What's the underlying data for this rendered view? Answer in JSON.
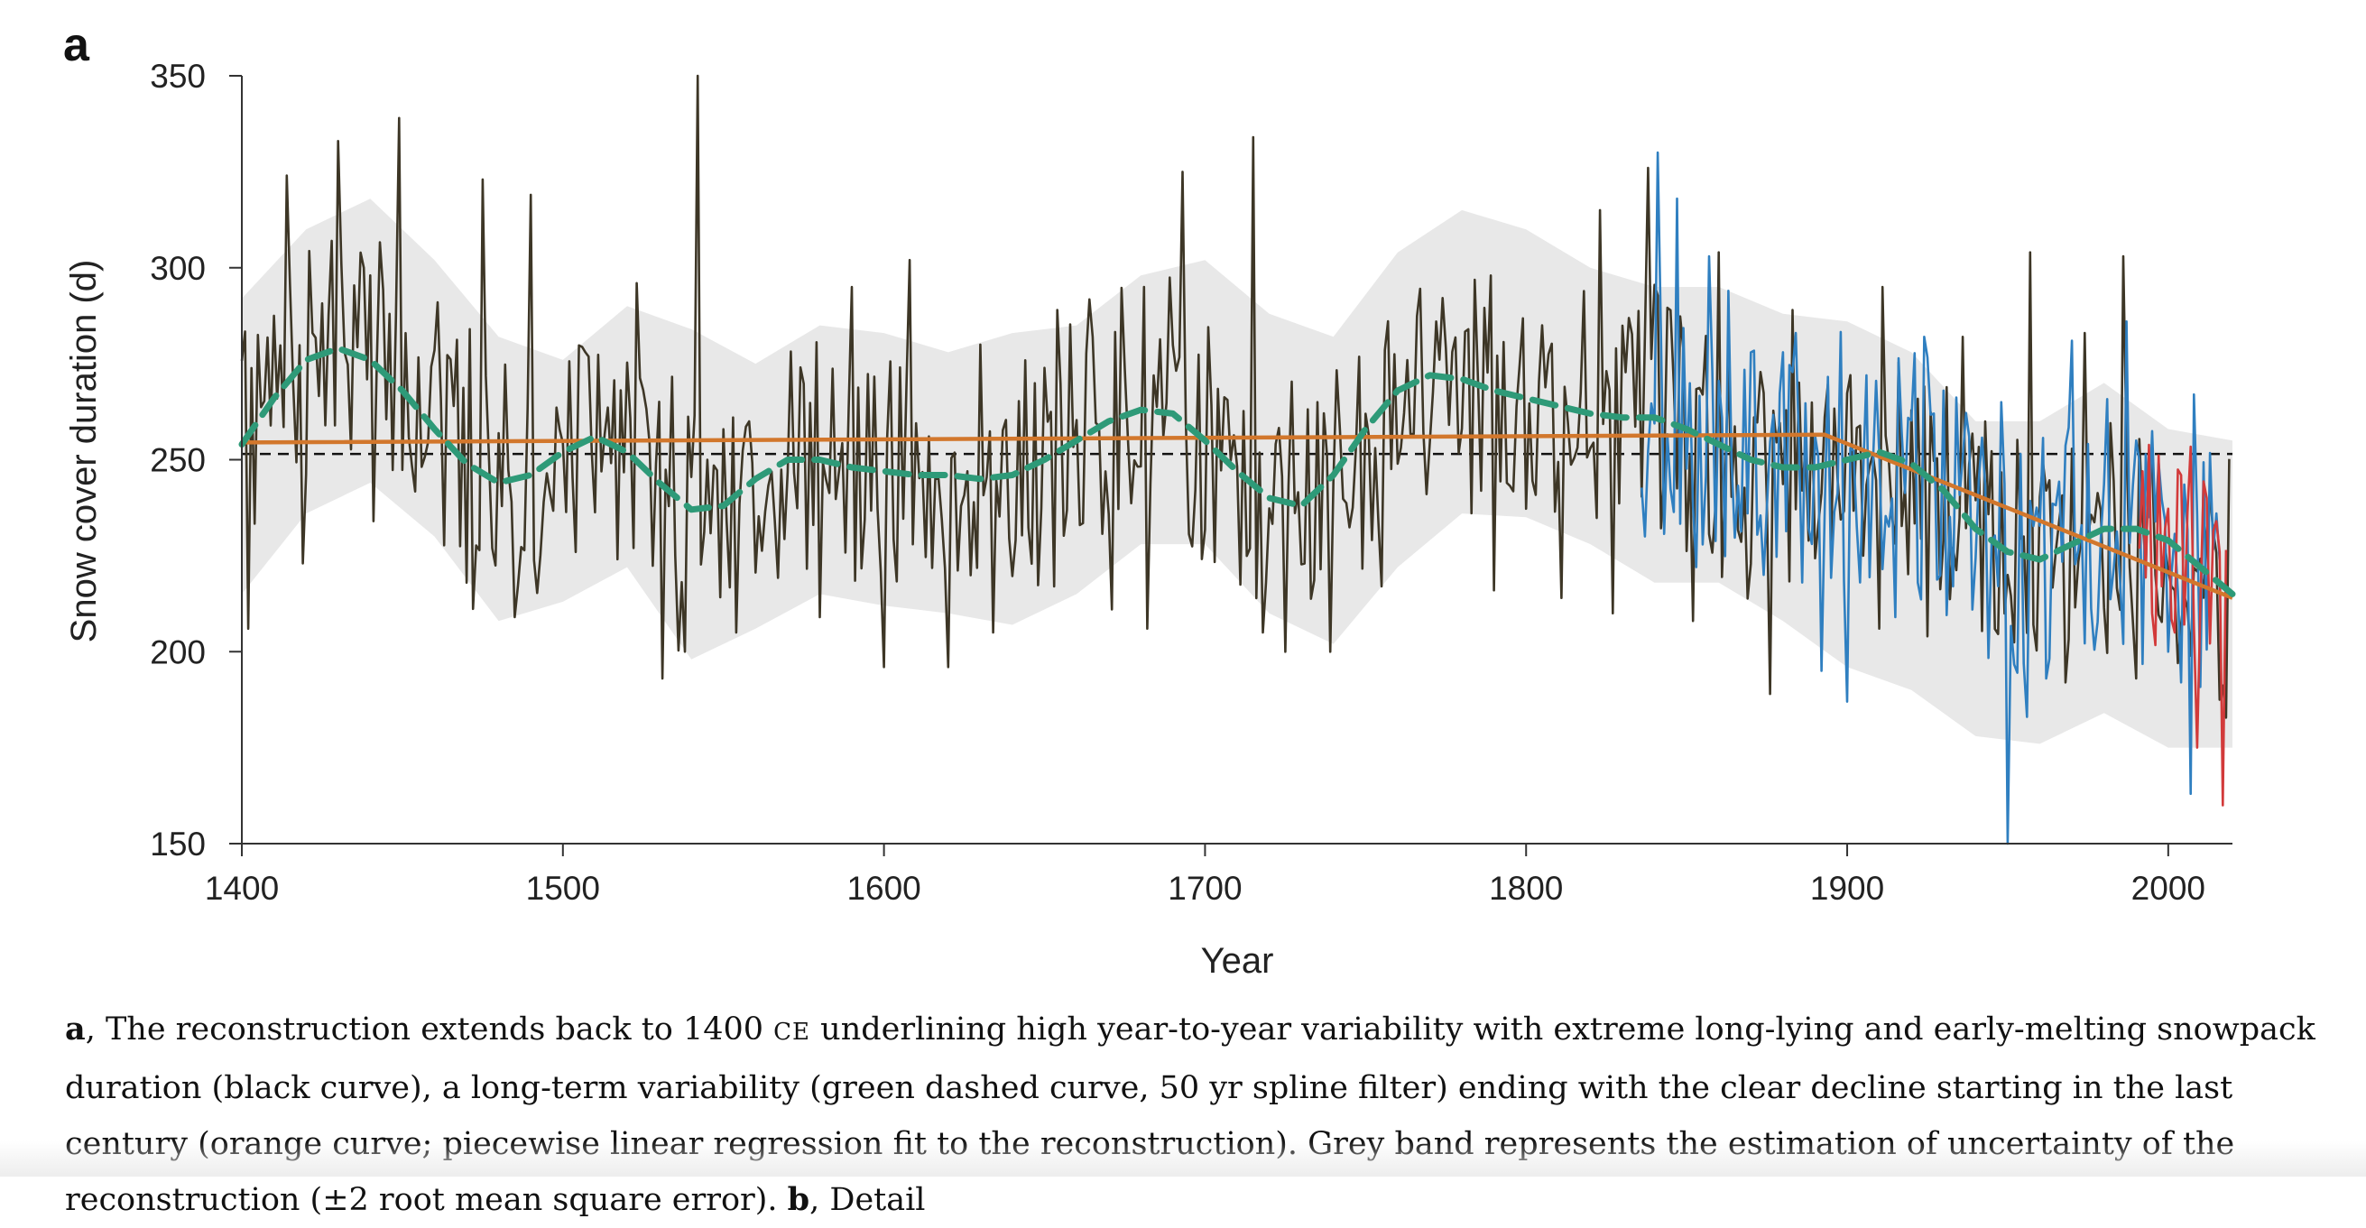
{
  "panel_label": "a",
  "chart_data": {
    "type": "line",
    "title": "",
    "xlabel": "Year",
    "ylabel": "Snow cover duration (d)",
    "xlim": [
      1400,
      2020
    ],
    "ylim": [
      150,
      350
    ],
    "xticks": [
      1400,
      1500,
      1600,
      1700,
      1800,
      1900,
      2000
    ],
    "yticks": [
      150,
      200,
      250,
      300,
      350
    ],
    "legend": "none",
    "grid": false,
    "reference_line": {
      "value": 251.5,
      "style": "dashed",
      "color": "#111111"
    },
    "uncertainty_band": {
      "color": "#e8e8e8",
      "x": [
        1400,
        1420,
        1440,
        1460,
        1480,
        1500,
        1520,
        1540,
        1560,
        1580,
        1600,
        1620,
        1640,
        1660,
        1680,
        1700,
        1720,
        1740,
        1760,
        1780,
        1800,
        1820,
        1840,
        1860,
        1880,
        1900,
        1920,
        1940,
        1960,
        1980,
        2000,
        2020
      ],
      "upper": [
        292,
        310,
        318,
        302,
        282,
        276,
        290,
        284,
        275,
        285,
        283,
        278,
        283,
        285,
        298,
        302,
        288,
        282,
        304,
        315,
        310,
        300,
        295,
        295,
        288,
        286,
        278,
        260,
        260,
        270,
        258,
        255
      ],
      "lower": [
        215,
        236,
        244,
        230,
        208,
        213,
        222,
        198,
        206,
        215,
        212,
        210,
        207,
        215,
        228,
        228,
        210,
        202,
        222,
        236,
        235,
        228,
        218,
        218,
        208,
        196,
        190,
        178,
        176,
        184,
        175,
        175
      ]
    },
    "series": [
      {
        "style": "spline",
        "color": "#2e9a78",
        "x": [
          1400,
          1410,
          1420,
          1430,
          1440,
          1450,
          1460,
          1470,
          1480,
          1490,
          1500,
          1510,
          1520,
          1530,
          1540,
          1550,
          1560,
          1570,
          1580,
          1590,
          1600,
          1610,
          1620,
          1630,
          1640,
          1650,
          1660,
          1670,
          1680,
          1690,
          1700,
          1710,
          1720,
          1730,
          1740,
          1750,
          1760,
          1770,
          1780,
          1790,
          1800,
          1810,
          1820,
          1830,
          1840,
          1850,
          1860,
          1870,
          1880,
          1890,
          1900,
          1910,
          1920,
          1930,
          1940,
          1950,
          1960,
          1970,
          1980,
          1990,
          2000,
          2010,
          2020
        ],
        "y": [
          254,
          266,
          276,
          279,
          276,
          268,
          258,
          249,
          244,
          246,
          252,
          256,
          252,
          244,
          237,
          238,
          245,
          250,
          250,
          248,
          247,
          246,
          246,
          245,
          246,
          250,
          255,
          260,
          263,
          262,
          255,
          247,
          240,
          238,
          246,
          258,
          268,
          272,
          271,
          268,
          266,
          264,
          262,
          261,
          261,
          258,
          254,
          250,
          248,
          248,
          250,
          252,
          249,
          242,
          232,
          226,
          224,
          228,
          232,
          232,
          229,
          222,
          215
        ]
      },
      {
        "style": "piecewise",
        "color": "#d2772c",
        "x": [
          1400,
          1893,
          2020
        ],
        "y": [
          254.5,
          256.5,
          214
        ]
      },
      {
        "style": "annual",
        "color": "#3d3626",
        "x_start": 1400,
        "x_end": 2019,
        "peaks": [
          [
            1414,
            324
          ],
          [
            1422,
            283
          ],
          [
            1430,
            333
          ],
          [
            1438,
            300
          ],
          [
            1449,
            339
          ],
          [
            1461,
            291
          ],
          [
            1475,
            323
          ],
          [
            1490,
            319
          ],
          [
            1507,
            278
          ],
          [
            1523,
            296
          ],
          [
            1542,
            350
          ],
          [
            1553,
            261
          ],
          [
            1590,
            295
          ],
          [
            1608,
            302
          ],
          [
            1630,
            280
          ],
          [
            1665,
            282
          ],
          [
            1681,
            295
          ],
          [
            1693,
            325
          ],
          [
            1715,
            334
          ],
          [
            1735,
            265
          ],
          [
            1755,
            287
          ],
          [
            1772,
            286
          ],
          [
            1789,
            298
          ],
          [
            1805,
            285
          ],
          [
            1823,
            315
          ],
          [
            1838,
            326
          ],
          [
            1860,
            304
          ],
          [
            1883,
            289
          ],
          [
            1911,
            295
          ],
          [
            1936,
            282
          ],
          [
            1957,
            304
          ],
          [
            1974,
            283
          ],
          [
            1986,
            303
          ]
        ],
        "troughs": [
          [
            1402,
            206
          ],
          [
            1419,
            223
          ],
          [
            1441,
            234
          ],
          [
            1470,
            218
          ],
          [
            1485,
            209
          ],
          [
            1531,
            193
          ],
          [
            1538,
            200
          ],
          [
            1554,
            205
          ],
          [
            1580,
            209
          ],
          [
            1600,
            196
          ],
          [
            1620,
            196
          ],
          [
            1634,
            205
          ],
          [
            1653,
            217
          ],
          [
            1671,
            211
          ],
          [
            1682,
            206
          ],
          [
            1718,
            205
          ],
          [
            1725,
            200
          ],
          [
            1739,
            200
          ],
          [
            1755,
            217
          ],
          [
            1790,
            216
          ],
          [
            1811,
            214
          ],
          [
            1827,
            210
          ],
          [
            1852,
            208
          ],
          [
            1876,
            189
          ],
          [
            1910,
            206
          ],
          [
            1925,
            204
          ],
          [
            1950,
            220
          ],
          [
            1968,
            192
          ],
          [
            1990,
            193
          ],
          [
            2003,
            197
          ]
        ]
      },
      {
        "style": "annual",
        "color": "#2f7fc0",
        "x_start": 1836,
        "x_end": 2016,
        "peaks": [
          [
            1841,
            330
          ],
          [
            1847,
            318
          ],
          [
            1857,
            303
          ],
          [
            1863,
            294
          ],
          [
            1884,
            283
          ],
          [
            1906,
            272
          ],
          [
            1930,
            268
          ],
          [
            1948,
            265
          ],
          [
            1970,
            281
          ],
          [
            1987,
            286
          ],
          [
            2000,
            276
          ],
          [
            2008,
            267
          ]
        ],
        "troughs": [
          [
            1853,
            222
          ],
          [
            1874,
            220
          ],
          [
            1892,
            195
          ],
          [
            1900,
            187
          ],
          [
            1915,
            209
          ],
          [
            1922,
            218
          ],
          [
            1933,
            217
          ],
          [
            1950,
            150
          ],
          [
            1956,
            183
          ],
          [
            1962,
            193
          ],
          [
            1986,
            202
          ],
          [
            2000,
            200
          ],
          [
            2007,
            163
          ]
        ]
      },
      {
        "style": "annual",
        "color": "#d23a3a",
        "x_start": 1991,
        "x_end": 2018,
        "peaks": [
          [
            1992,
            247
          ],
          [
            1999,
            232
          ],
          [
            2004,
            246
          ],
          [
            2012,
            240
          ],
          [
            2015,
            234
          ]
        ],
        "troughs": [
          [
            1995,
            210
          ],
          [
            2002,
            205
          ],
          [
            2009,
            175
          ],
          [
            2017,
            160
          ]
        ]
      }
    ]
  },
  "caption": {
    "a_label": "a",
    "a_text_1": ", The reconstruction extends back to 1400 ",
    "era_label": "CE",
    "a_text_2": " underlining high year-to-year variability with extreme long-lying and early-melting snowpack duration (black curve), a long-term variability (green dashed curve, 50 yr spline filter) ending with the clear decline starting in the last century (orange curve; piecewise linear regression fit to the reconstruction). Grey band represents the estimation of uncertainty of the reconstruction (±2 root mean square error). ",
    "b_label": "b",
    "b_text": ", Detail"
  }
}
